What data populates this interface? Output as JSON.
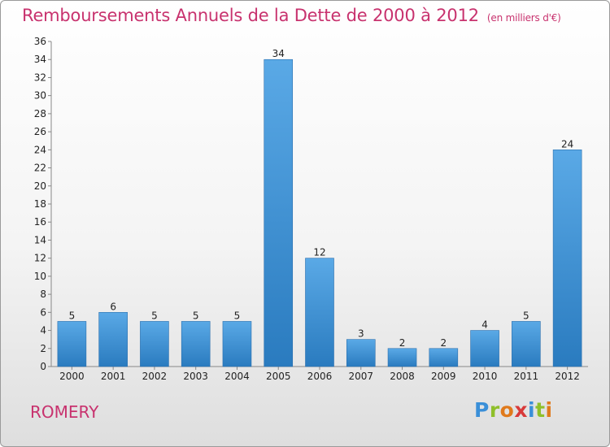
{
  "header": {
    "title": "Remboursements Annuels de la Dette de 2000 à 2012",
    "subtitle": "(en milliers d'€)"
  },
  "footer": {
    "place": "ROMERY",
    "logo_letters": [
      "P",
      "r",
      "o",
      "x",
      "i",
      "t",
      "i"
    ],
    "logo_colors": [
      "#3a8fd8",
      "#8fbf2a",
      "#e07a1c",
      "#d83a3a",
      "#3a8fd8",
      "#8fbf2a",
      "#e07a1c"
    ]
  },
  "chart_data": {
    "type": "bar",
    "title": "Remboursements Annuels de la Dette de 2000 à 2012",
    "subtitle": "(en milliers d'€)",
    "xlabel": "",
    "ylabel": "",
    "categories": [
      "2000",
      "2001",
      "2002",
      "2003",
      "2004",
      "2005",
      "2006",
      "2007",
      "2008",
      "2009",
      "2010",
      "2011",
      "2012"
    ],
    "values": [
      5,
      6,
      5,
      5,
      5,
      34,
      12,
      3,
      2,
      2,
      4,
      5,
      24
    ],
    "ylim": [
      0,
      36
    ],
    "yticks": [
      0,
      2,
      4,
      6,
      8,
      10,
      12,
      14,
      16,
      18,
      20,
      22,
      24,
      26,
      28,
      30,
      32,
      34,
      36
    ],
    "grid": false,
    "bar_color_top": "#5aa9e6",
    "bar_color_bottom": "#2a7bbf"
  }
}
